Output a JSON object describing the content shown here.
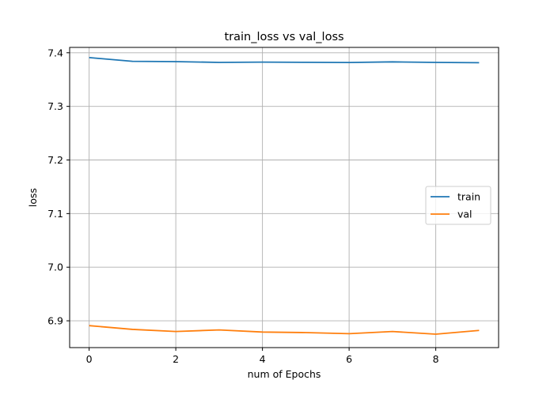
{
  "chart_data": {
    "type": "line",
    "title": "train_loss vs val_loss",
    "xlabel": "num of Epochs",
    "ylabel": "loss",
    "x": [
      0,
      1,
      2,
      3,
      4,
      5,
      6,
      7,
      8,
      9
    ],
    "xlim": [
      -0.45,
      9.45
    ],
    "ylim": [
      6.85,
      7.41
    ],
    "xticks": [
      0,
      2,
      4,
      6,
      8
    ],
    "yticks": [
      6.9,
      7.0,
      7.1,
      7.2,
      7.3,
      7.4
    ],
    "xtick_labels": [
      "0",
      "2",
      "4",
      "6",
      "8"
    ],
    "ytick_labels": [
      "6.9",
      "7.0",
      "7.1",
      "7.2",
      "7.3",
      "7.4"
    ],
    "grid": true,
    "legend": {
      "location": "center-right"
    },
    "series": [
      {
        "name": "train",
        "color": "#1f77b4",
        "values": [
          7.391,
          7.384,
          7.3835,
          7.382,
          7.3825,
          7.3822,
          7.3818,
          7.383,
          7.382,
          7.3815
        ]
      },
      {
        "name": "val",
        "color": "#ff7f0e",
        "values": [
          6.891,
          6.884,
          6.88,
          6.883,
          6.879,
          6.878,
          6.876,
          6.88,
          6.875,
          6.882
        ]
      }
    ]
  }
}
